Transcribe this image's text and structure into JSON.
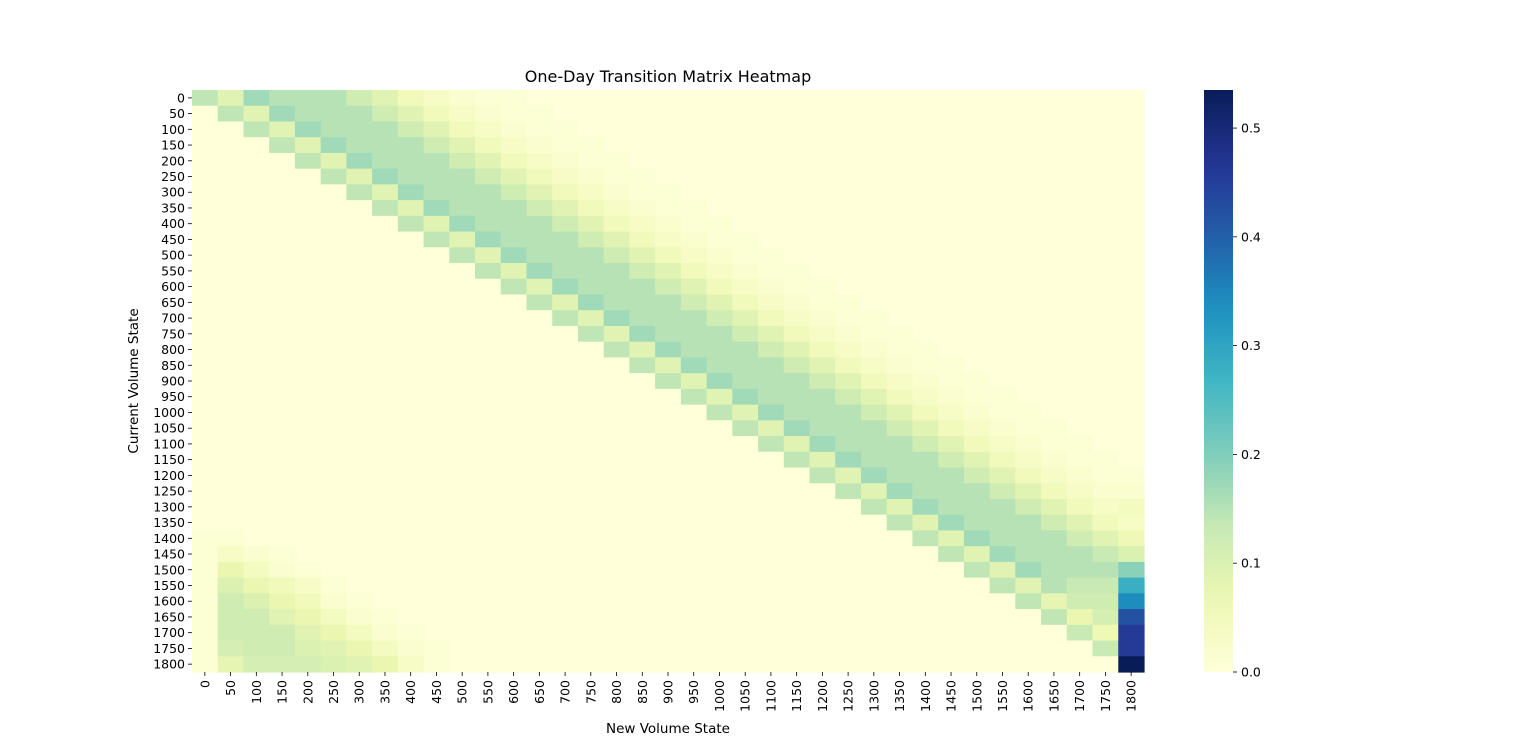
{
  "chart_data": {
    "type": "heatmap",
    "title": "One-Day Transition Matrix Heatmap",
    "xlabel": "New Volume State",
    "ylabel": "Current Volume State",
    "x_categories": [
      "0",
      "50",
      "100",
      "150",
      "200",
      "250",
      "300",
      "350",
      "400",
      "450",
      "500",
      "550",
      "600",
      "650",
      "700",
      "750",
      "800",
      "850",
      "900",
      "950",
      "1000",
      "1050",
      "1100",
      "1150",
      "1200",
      "1250",
      "1300",
      "1350",
      "1400",
      "1450",
      "1500",
      "1550",
      "1600",
      "1650",
      "1700",
      "1750",
      "1800"
    ],
    "y_categories": [
      "0",
      "50",
      "100",
      "150",
      "200",
      "250",
      "300",
      "350",
      "400",
      "450",
      "500",
      "550",
      "600",
      "650",
      "700",
      "750",
      "800",
      "850",
      "900",
      "950",
      "1000",
      "1050",
      "1100",
      "1150",
      "1200",
      "1250",
      "1300",
      "1350",
      "1400",
      "1450",
      "1500",
      "1550",
      "1600",
      "1650",
      "1700",
      "1750",
      "1800"
    ],
    "colormap": "YlGnBu",
    "colorbar": {
      "min": 0.0,
      "max": 0.535,
      "ticks": [
        "0.0",
        "0.1",
        "0.2",
        "0.3",
        "0.4",
        "0.5"
      ],
      "tick_values": [
        0,
        0.1,
        0.2,
        0.3,
        0.4,
        0.5
      ]
    },
    "values": [
      [
        0.14,
        0.09,
        0.17,
        0.15,
        0.15,
        0.15,
        0.12,
        0.09,
        0.05,
        0.03,
        0.02,
        0.01,
        0.01,
        0,
        0,
        0,
        0,
        0,
        0,
        0,
        0,
        0,
        0,
        0,
        0,
        0,
        0,
        0,
        0,
        0,
        0,
        0,
        0,
        0,
        0,
        0,
        0
      ],
      [
        0,
        0.14,
        0.09,
        0.17,
        0.15,
        0.15,
        0.15,
        0.12,
        0.09,
        0.05,
        0.03,
        0.02,
        0.01,
        0.01,
        0,
        0,
        0,
        0,
        0,
        0,
        0,
        0,
        0,
        0,
        0,
        0,
        0,
        0,
        0,
        0,
        0,
        0,
        0,
        0,
        0,
        0,
        0
      ],
      [
        0,
        0,
        0.14,
        0.09,
        0.17,
        0.15,
        0.15,
        0.15,
        0.12,
        0.09,
        0.05,
        0.03,
        0.02,
        0.01,
        0.01,
        0,
        0,
        0,
        0,
        0,
        0,
        0,
        0,
        0,
        0,
        0,
        0,
        0,
        0,
        0,
        0,
        0,
        0,
        0,
        0,
        0,
        0
      ],
      [
        0,
        0,
        0,
        0.14,
        0.09,
        0.17,
        0.15,
        0.15,
        0.15,
        0.12,
        0.09,
        0.05,
        0.03,
        0.02,
        0.01,
        0.01,
        0,
        0,
        0,
        0,
        0,
        0,
        0,
        0,
        0,
        0,
        0,
        0,
        0,
        0,
        0,
        0,
        0,
        0,
        0,
        0,
        0
      ],
      [
        0,
        0,
        0,
        0,
        0.14,
        0.09,
        0.17,
        0.15,
        0.15,
        0.15,
        0.12,
        0.09,
        0.05,
        0.03,
        0.02,
        0.01,
        0.01,
        0,
        0,
        0,
        0,
        0,
        0,
        0,
        0,
        0,
        0,
        0,
        0,
        0,
        0,
        0,
        0,
        0,
        0,
        0,
        0
      ],
      [
        0,
        0,
        0,
        0,
        0,
        0.14,
        0.09,
        0.17,
        0.15,
        0.15,
        0.15,
        0.12,
        0.09,
        0.05,
        0.03,
        0.02,
        0.01,
        0.01,
        0,
        0,
        0,
        0,
        0,
        0,
        0,
        0,
        0,
        0,
        0,
        0,
        0,
        0,
        0,
        0,
        0,
        0,
        0
      ],
      [
        0,
        0,
        0,
        0,
        0,
        0,
        0.14,
        0.09,
        0.17,
        0.15,
        0.15,
        0.15,
        0.12,
        0.09,
        0.05,
        0.03,
        0.02,
        0.01,
        0.01,
        0,
        0,
        0,
        0,
        0,
        0,
        0,
        0,
        0,
        0,
        0,
        0,
        0,
        0,
        0,
        0,
        0,
        0
      ],
      [
        0,
        0,
        0,
        0,
        0,
        0,
        0,
        0.14,
        0.09,
        0.17,
        0.15,
        0.15,
        0.15,
        0.12,
        0.09,
        0.05,
        0.03,
        0.02,
        0.01,
        0.01,
        0,
        0,
        0,
        0,
        0,
        0,
        0,
        0,
        0,
        0,
        0,
        0,
        0,
        0,
        0,
        0,
        0
      ],
      [
        0,
        0,
        0,
        0,
        0,
        0,
        0,
        0,
        0.14,
        0.09,
        0.17,
        0.15,
        0.15,
        0.15,
        0.12,
        0.09,
        0.05,
        0.03,
        0.02,
        0.01,
        0.01,
        0,
        0,
        0,
        0,
        0,
        0,
        0,
        0,
        0,
        0,
        0,
        0,
        0,
        0,
        0,
        0
      ],
      [
        0,
        0,
        0,
        0,
        0,
        0,
        0,
        0,
        0,
        0.14,
        0.09,
        0.17,
        0.15,
        0.15,
        0.15,
        0.12,
        0.09,
        0.05,
        0.03,
        0.02,
        0.01,
        0.01,
        0,
        0,
        0,
        0,
        0,
        0,
        0,
        0,
        0,
        0,
        0,
        0,
        0,
        0,
        0
      ],
      [
        0,
        0,
        0,
        0,
        0,
        0,
        0,
        0,
        0,
        0,
        0.14,
        0.09,
        0.17,
        0.15,
        0.15,
        0.15,
        0.12,
        0.09,
        0.05,
        0.03,
        0.02,
        0.01,
        0.01,
        0,
        0,
        0,
        0,
        0,
        0,
        0,
        0,
        0,
        0,
        0,
        0,
        0,
        0
      ],
      [
        0,
        0,
        0,
        0,
        0,
        0,
        0,
        0,
        0,
        0,
        0,
        0.14,
        0.09,
        0.17,
        0.15,
        0.15,
        0.15,
        0.12,
        0.09,
        0.05,
        0.03,
        0.02,
        0.01,
        0.01,
        0,
        0,
        0,
        0,
        0,
        0,
        0,
        0,
        0,
        0,
        0,
        0,
        0
      ],
      [
        0,
        0,
        0,
        0,
        0,
        0,
        0,
        0,
        0,
        0,
        0,
        0,
        0.14,
        0.09,
        0.17,
        0.15,
        0.15,
        0.15,
        0.12,
        0.09,
        0.05,
        0.03,
        0.02,
        0.01,
        0.01,
        0,
        0,
        0,
        0,
        0,
        0,
        0,
        0,
        0,
        0,
        0,
        0
      ],
      [
        0,
        0,
        0,
        0,
        0,
        0,
        0,
        0,
        0,
        0,
        0,
        0,
        0,
        0.14,
        0.09,
        0.17,
        0.15,
        0.15,
        0.15,
        0.12,
        0.09,
        0.05,
        0.03,
        0.02,
        0.01,
        0.01,
        0,
        0,
        0,
        0,
        0,
        0,
        0,
        0,
        0,
        0,
        0
      ],
      [
        0,
        0,
        0,
        0,
        0,
        0,
        0,
        0,
        0,
        0,
        0,
        0,
        0,
        0,
        0.14,
        0.09,
        0.17,
        0.15,
        0.15,
        0.15,
        0.12,
        0.09,
        0.05,
        0.03,
        0.02,
        0.01,
        0.01,
        0,
        0,
        0,
        0,
        0,
        0,
        0,
        0,
        0,
        0
      ],
      [
        0,
        0,
        0,
        0,
        0,
        0,
        0,
        0,
        0,
        0,
        0,
        0,
        0,
        0,
        0,
        0.14,
        0.09,
        0.17,
        0.15,
        0.15,
        0.15,
        0.12,
        0.09,
        0.05,
        0.03,
        0.02,
        0.01,
        0.01,
        0,
        0,
        0,
        0,
        0,
        0,
        0,
        0,
        0
      ],
      [
        0,
        0,
        0,
        0,
        0,
        0,
        0,
        0,
        0,
        0,
        0,
        0,
        0,
        0,
        0,
        0,
        0.14,
        0.09,
        0.17,
        0.15,
        0.15,
        0.15,
        0.12,
        0.09,
        0.05,
        0.03,
        0.02,
        0.01,
        0.01,
        0,
        0,
        0,
        0,
        0,
        0,
        0,
        0
      ],
      [
        0,
        0,
        0,
        0,
        0,
        0,
        0,
        0,
        0,
        0,
        0,
        0,
        0,
        0,
        0,
        0,
        0,
        0.14,
        0.09,
        0.17,
        0.15,
        0.15,
        0.15,
        0.12,
        0.09,
        0.05,
        0.03,
        0.02,
        0.01,
        0.01,
        0,
        0,
        0,
        0,
        0,
        0,
        0
      ],
      [
        0,
        0,
        0,
        0,
        0,
        0,
        0,
        0,
        0,
        0,
        0,
        0,
        0,
        0,
        0,
        0,
        0,
        0,
        0.14,
        0.09,
        0.17,
        0.15,
        0.15,
        0.15,
        0.12,
        0.09,
        0.05,
        0.03,
        0.02,
        0.01,
        0.01,
        0,
        0,
        0,
        0,
        0,
        0
      ],
      [
        0,
        0,
        0,
        0,
        0,
        0,
        0,
        0,
        0,
        0,
        0,
        0,
        0,
        0,
        0,
        0,
        0,
        0,
        0,
        0.14,
        0.09,
        0.17,
        0.15,
        0.15,
        0.15,
        0.12,
        0.09,
        0.05,
        0.03,
        0.02,
        0.01,
        0.01,
        0,
        0,
        0,
        0,
        0
      ],
      [
        0,
        0,
        0,
        0,
        0,
        0,
        0,
        0,
        0,
        0,
        0,
        0,
        0,
        0,
        0,
        0,
        0,
        0,
        0,
        0,
        0.14,
        0.09,
        0.17,
        0.15,
        0.15,
        0.15,
        0.12,
        0.09,
        0.05,
        0.03,
        0.02,
        0.01,
        0.01,
        0,
        0,
        0,
        0
      ],
      [
        0,
        0,
        0,
        0,
        0,
        0,
        0,
        0,
        0,
        0,
        0,
        0,
        0,
        0,
        0,
        0,
        0,
        0,
        0,
        0,
        0,
        0.14,
        0.09,
        0.17,
        0.15,
        0.15,
        0.15,
        0.12,
        0.09,
        0.05,
        0.03,
        0.02,
        0.01,
        0.01,
        0,
        0,
        0
      ],
      [
        0,
        0,
        0,
        0,
        0,
        0,
        0,
        0,
        0,
        0,
        0,
        0,
        0,
        0,
        0,
        0,
        0,
        0,
        0,
        0,
        0,
        0,
        0.14,
        0.09,
        0.17,
        0.15,
        0.15,
        0.15,
        0.12,
        0.09,
        0.05,
        0.03,
        0.02,
        0.01,
        0.01,
        0,
        0
      ],
      [
        0,
        0,
        0,
        0,
        0,
        0,
        0,
        0,
        0,
        0,
        0,
        0,
        0,
        0,
        0,
        0,
        0,
        0,
        0,
        0,
        0,
        0,
        0,
        0.14,
        0.09,
        0.17,
        0.15,
        0.15,
        0.15,
        0.12,
        0.09,
        0.05,
        0.03,
        0.02,
        0.01,
        0.01,
        0
      ],
      [
        0,
        0,
        0,
        0,
        0,
        0,
        0,
        0,
        0,
        0,
        0,
        0,
        0,
        0,
        0,
        0,
        0,
        0,
        0,
        0,
        0,
        0,
        0,
        0,
        0.14,
        0.09,
        0.17,
        0.15,
        0.15,
        0.15,
        0.12,
        0.09,
        0.05,
        0.03,
        0.02,
        0.01,
        0.01
      ],
      [
        0,
        0,
        0,
        0,
        0,
        0,
        0,
        0,
        0,
        0,
        0,
        0,
        0,
        0,
        0,
        0,
        0,
        0,
        0,
        0,
        0,
        0,
        0,
        0,
        0,
        0.14,
        0.09,
        0.17,
        0.15,
        0.15,
        0.15,
        0.12,
        0.09,
        0.05,
        0.03,
        0.02,
        0.02
      ],
      [
        0,
        0,
        0,
        0,
        0,
        0,
        0,
        0,
        0,
        0,
        0,
        0,
        0,
        0,
        0,
        0,
        0,
        0,
        0,
        0,
        0,
        0,
        0,
        0,
        0,
        0,
        0.14,
        0.09,
        0.17,
        0.15,
        0.15,
        0.15,
        0.12,
        0.09,
        0.05,
        0.03,
        0.04
      ],
      [
        0,
        0,
        0,
        0,
        0,
        0,
        0,
        0,
        0,
        0,
        0,
        0,
        0,
        0,
        0,
        0,
        0,
        0,
        0,
        0,
        0,
        0,
        0,
        0,
        0,
        0,
        0,
        0.14,
        0.09,
        0.17,
        0.15,
        0.15,
        0.15,
        0.12,
        0.09,
        0.05,
        0.03
      ],
      [
        0.01,
        0.01,
        0,
        0,
        0,
        0,
        0,
        0,
        0,
        0,
        0,
        0,
        0,
        0,
        0,
        0,
        0,
        0,
        0,
        0,
        0,
        0,
        0,
        0,
        0,
        0,
        0,
        0,
        0.14,
        0.09,
        0.17,
        0.15,
        0.15,
        0.15,
        0.12,
        0.09,
        0.06
      ],
      [
        0.01,
        0.03,
        0.02,
        0.01,
        0,
        0,
        0,
        0,
        0,
        0,
        0,
        0,
        0,
        0,
        0,
        0,
        0,
        0,
        0,
        0,
        0,
        0,
        0,
        0,
        0,
        0,
        0,
        0,
        0,
        0.14,
        0.09,
        0.17,
        0.15,
        0.15,
        0.15,
        0.13,
        0.1
      ],
      [
        0.01,
        0.07,
        0.04,
        0.02,
        0.01,
        0,
        0,
        0,
        0,
        0,
        0,
        0,
        0,
        0,
        0,
        0,
        0,
        0,
        0,
        0,
        0,
        0,
        0,
        0,
        0,
        0,
        0,
        0,
        0,
        0,
        0.14,
        0.09,
        0.17,
        0.15,
        0.15,
        0.15,
        0.19
      ],
      [
        0.01,
        0.1,
        0.07,
        0.05,
        0.03,
        0.01,
        0,
        0,
        0,
        0,
        0,
        0,
        0,
        0,
        0,
        0,
        0,
        0,
        0,
        0,
        0,
        0,
        0,
        0,
        0,
        0,
        0,
        0,
        0,
        0,
        0,
        0.14,
        0.09,
        0.15,
        0.13,
        0.13,
        0.28
      ],
      [
        0.01,
        0.12,
        0.1,
        0.07,
        0.05,
        0.02,
        0.01,
        0,
        0,
        0,
        0,
        0,
        0,
        0,
        0,
        0,
        0,
        0,
        0,
        0,
        0,
        0,
        0,
        0,
        0,
        0,
        0,
        0,
        0,
        0,
        0,
        0,
        0.14,
        0.08,
        0.12,
        0.12,
        0.34
      ],
      [
        0.01,
        0.12,
        0.12,
        0.09,
        0.07,
        0.04,
        0.02,
        0.01,
        0,
        0,
        0,
        0,
        0,
        0,
        0,
        0,
        0,
        0,
        0,
        0,
        0,
        0,
        0,
        0,
        0,
        0,
        0,
        0,
        0,
        0,
        0,
        0,
        0,
        0.14,
        0.07,
        0.11,
        0.42
      ],
      [
        0.01,
        0.12,
        0.12,
        0.12,
        0.09,
        0.07,
        0.04,
        0.02,
        0.01,
        0,
        0,
        0,
        0,
        0,
        0,
        0,
        0,
        0,
        0,
        0,
        0,
        0,
        0,
        0,
        0,
        0,
        0,
        0,
        0,
        0,
        0,
        0,
        0,
        0,
        0.13,
        0.06,
        0.46
      ],
      [
        0.01,
        0.11,
        0.12,
        0.12,
        0.1,
        0.09,
        0.07,
        0.04,
        0.02,
        0.01,
        0,
        0,
        0,
        0,
        0,
        0,
        0,
        0,
        0,
        0,
        0,
        0,
        0,
        0,
        0,
        0,
        0,
        0,
        0,
        0,
        0,
        0,
        0,
        0,
        0,
        0.13,
        0.46
      ],
      [
        0.01,
        0.08,
        0.11,
        0.11,
        0.11,
        0.1,
        0.09,
        0.07,
        0.03,
        0.01,
        0,
        0,
        0,
        0,
        0,
        0,
        0,
        0,
        0,
        0,
        0,
        0,
        0,
        0,
        0,
        0,
        0,
        0,
        0,
        0,
        0,
        0,
        0,
        0,
        0,
        0,
        0.535
      ]
    ]
  }
}
